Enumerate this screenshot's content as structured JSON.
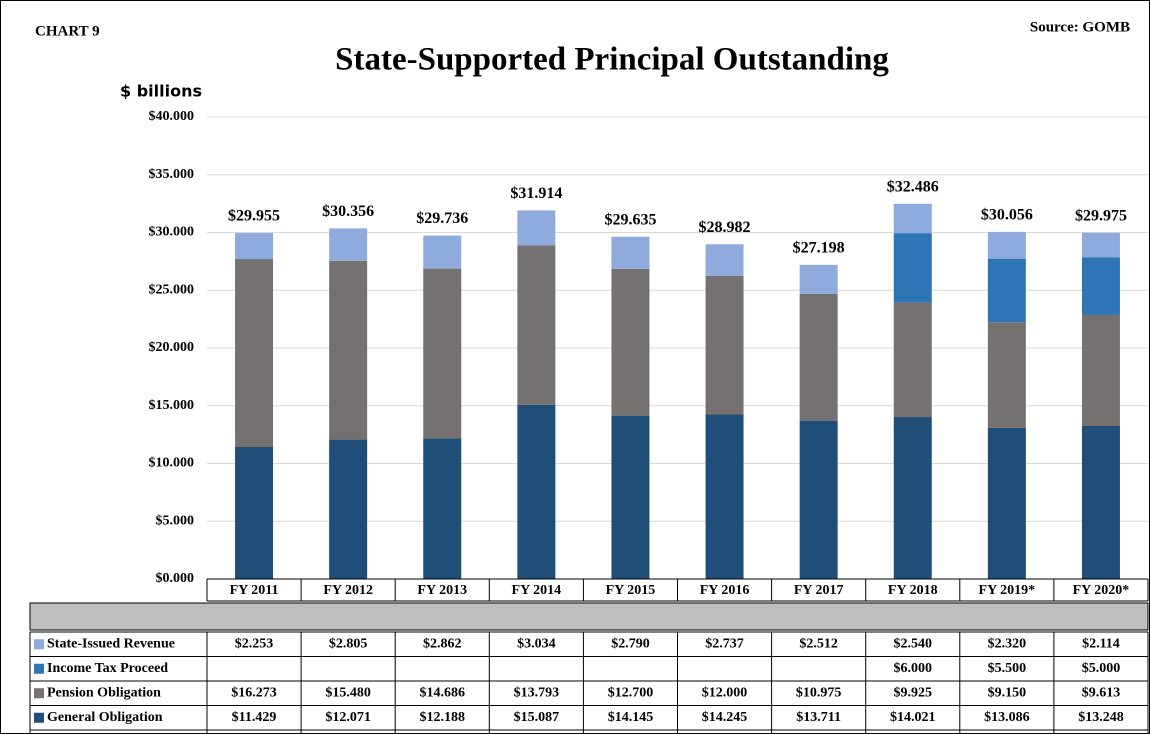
{
  "chart_data": {
    "type": "stacked_bar",
    "label": "CHART 9",
    "source": "Source: GOMB",
    "title": "State-Supported Principal Outstanding",
    "y_axis_label": "$ billions",
    "categories": [
      "FY 2011",
      "FY 2012",
      "FY 2013",
      "FY 2014",
      "FY 2015",
      "FY 2016",
      "FY 2017",
      "FY 2018",
      "FY 2019*",
      "FY 2020*"
    ],
    "series": [
      {
        "name": "General Obligation",
        "color": "#1f4e79",
        "values": [
          11.429,
          12.071,
          12.188,
          15.087,
          14.145,
          14.245,
          13.711,
          14.021,
          13.086,
          13.248
        ],
        "value_labels": [
          "$11.429",
          "$12.071",
          "$12.188",
          "$15.087",
          "$14.145",
          "$14.245",
          "$13.711",
          "$14.021",
          "$13.086",
          "$13.248"
        ]
      },
      {
        "name": "Pension Obligation",
        "color": "#767171",
        "values": [
          16.273,
          15.48,
          14.686,
          13.793,
          12.7,
          12.0,
          10.975,
          9.925,
          9.15,
          9.613
        ],
        "value_labels": [
          "$16.273",
          "$15.480",
          "$14.686",
          "$13.793",
          "$12.700",
          "$12.000",
          "$10.975",
          "$9.925",
          "$9.150",
          "$9.613"
        ]
      },
      {
        "name": "Income Tax Proceed",
        "color": "#2e75b6",
        "values": [
          null,
          null,
          null,
          null,
          null,
          null,
          null,
          6.0,
          5.5,
          5.0
        ],
        "value_labels": [
          null,
          null,
          null,
          null,
          null,
          null,
          null,
          "$6.000",
          "$5.500",
          "$5.000"
        ]
      },
      {
        "name": "State-Issued Revenue",
        "color": "#8faadc",
        "values": [
          2.253,
          2.805,
          2.862,
          3.034,
          2.79,
          2.737,
          2.512,
          2.54,
          2.32,
          2.114
        ],
        "value_labels": [
          "$2.253",
          "$2.805",
          "$2.862",
          "$3.034",
          "$2.790",
          "$2.737",
          "$2.512",
          "$2.540",
          "$2.320",
          "$2.114"
        ]
      }
    ],
    "totals": {
      "values": [
        29.955,
        30.356,
        29.736,
        31.914,
        29.635,
        28.982,
        27.198,
        32.486,
        30.056,
        29.975
      ],
      "value_labels": [
        "$29.955",
        "$30.356",
        "$29.736",
        "$31.914",
        "$29.635",
        "$28.982",
        "$27.198",
        "$32.486",
        "$30.056",
        "$29.975"
      ]
    },
    "ylim": [
      0,
      40
    ],
    "yticks": [
      {
        "value": 0,
        "label": "$0.000"
      },
      {
        "value": 5,
        "label": "$5.000"
      },
      {
        "value": 10,
        "label": "$10.000"
      },
      {
        "value": 15,
        "label": "$15.000"
      },
      {
        "value": 20,
        "label": "$20.000"
      },
      {
        "value": 25,
        "label": "$25.000"
      },
      {
        "value": 30,
        "label": "$30.000"
      },
      {
        "value": 35,
        "label": "$35.000"
      },
      {
        "value": 40,
        "label": "$40.000"
      }
    ],
    "grid": true
  }
}
